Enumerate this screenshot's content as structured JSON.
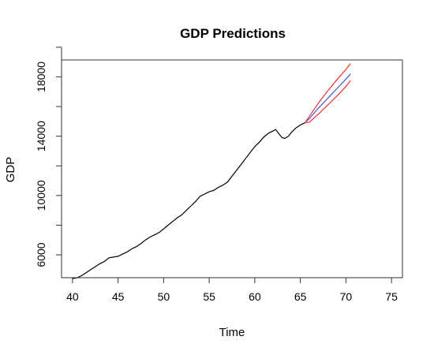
{
  "chart_data": {
    "type": "line",
    "title": "GDP Predictions",
    "xlabel": "Time",
    "ylabel": "GDP",
    "xlim": [
      38.8,
      76.2
    ],
    "ylim": [
      4460,
      19140
    ],
    "x_ticks": [
      40,
      45,
      50,
      55,
      60,
      65,
      70,
      75
    ],
    "y_ticks": [
      6000,
      10000,
      14000,
      18000
    ],
    "grid": false,
    "legend": "none",
    "series": [
      {
        "color": "#000000",
        "points": [
          [
            40.0,
            4400
          ],
          [
            40.5,
            4450
          ],
          [
            41.0,
            4600
          ],
          [
            41.5,
            4800
          ],
          [
            42.0,
            5000
          ],
          [
            42.5,
            5200
          ],
          [
            43.0,
            5400
          ],
          [
            43.5,
            5550
          ],
          [
            44.0,
            5800
          ],
          [
            44.5,
            5850
          ],
          [
            45.0,
            5900
          ],
          [
            45.5,
            6050
          ],
          [
            46.0,
            6200
          ],
          [
            46.5,
            6400
          ],
          [
            47.0,
            6550
          ],
          [
            47.5,
            6750
          ],
          [
            48.0,
            7000
          ],
          [
            48.5,
            7200
          ],
          [
            49.0,
            7350
          ],
          [
            49.5,
            7500
          ],
          [
            50.0,
            7750
          ],
          [
            50.5,
            8000
          ],
          [
            51.0,
            8250
          ],
          [
            51.5,
            8500
          ],
          [
            52.0,
            8700
          ],
          [
            52.5,
            9000
          ],
          [
            53.0,
            9300
          ],
          [
            53.5,
            9600
          ],
          [
            54.0,
            9950
          ],
          [
            54.5,
            10100
          ],
          [
            55.0,
            10250
          ],
          [
            55.5,
            10350
          ],
          [
            56.0,
            10550
          ],
          [
            56.5,
            10700
          ],
          [
            57.0,
            10900
          ],
          [
            57.5,
            11300
          ],
          [
            58.0,
            11700
          ],
          [
            58.5,
            12100
          ],
          [
            59.0,
            12500
          ],
          [
            59.5,
            12900
          ],
          [
            60.0,
            13300
          ],
          [
            60.5,
            13600
          ],
          [
            61.0,
            13950
          ],
          [
            61.5,
            14200
          ],
          [
            62.0,
            14350
          ],
          [
            62.3,
            14450
          ],
          [
            62.6,
            14200
          ],
          [
            63.0,
            13900
          ],
          [
            63.3,
            13850
          ],
          [
            63.7,
            14000
          ],
          [
            64.0,
            14250
          ],
          [
            64.5,
            14550
          ],
          [
            65.0,
            14750
          ],
          [
            65.5,
            14900
          ]
        ]
      },
      {
        "color": "#4455dd",
        "points": [
          [
            65.5,
            14900
          ],
          [
            66.0,
            15200
          ],
          [
            67.0,
            15900
          ],
          [
            68.0,
            16550
          ],
          [
            69.0,
            17200
          ],
          [
            70.0,
            17850
          ],
          [
            70.5,
            18200
          ]
        ]
      },
      {
        "color": "#ee3333",
        "points": [
          [
            65.5,
            14900
          ],
          [
            66.0,
            15350
          ],
          [
            67.0,
            16250
          ],
          [
            68.0,
            17050
          ],
          [
            69.0,
            17800
          ],
          [
            70.0,
            18500
          ],
          [
            70.5,
            18900
          ]
        ]
      },
      {
        "color": "#ee3333",
        "points": [
          [
            65.5,
            14900
          ],
          [
            66.0,
            14950
          ],
          [
            67.0,
            15500
          ],
          [
            68.0,
            16100
          ],
          [
            69.0,
            16700
          ],
          [
            70.0,
            17350
          ],
          [
            70.5,
            17750
          ]
        ]
      }
    ]
  }
}
